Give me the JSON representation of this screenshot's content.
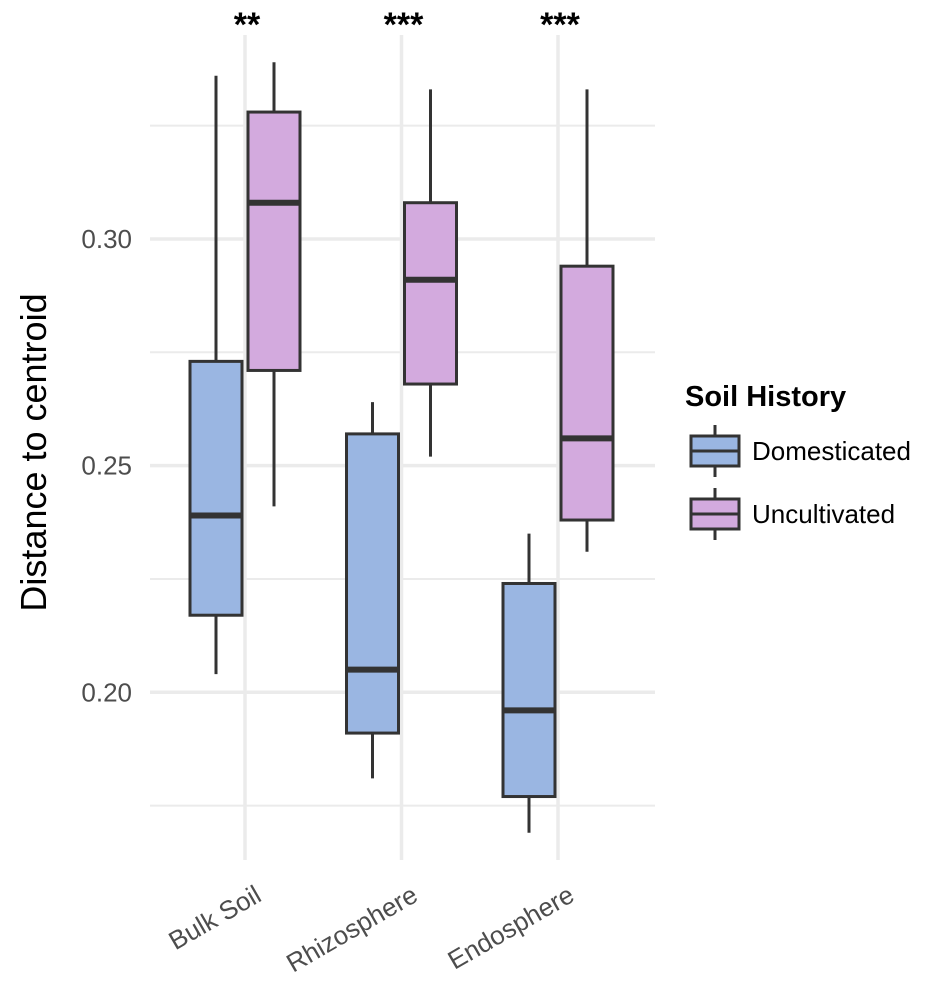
{
  "chart_data": {
    "type": "boxplot",
    "y_label": "Distance to centroid",
    "categories": [
      "Bulk Soil",
      "Rhizosphere",
      "Endosphere"
    ],
    "annotations": [
      "**",
      "***",
      "***"
    ],
    "legend_title": "Soil History",
    "legend_position": "right",
    "series": [
      {
        "name": "Domesticated",
        "color": "#9ab6e2",
        "values": [
          {
            "min": 0.204,
            "q1": 0.217,
            "median": 0.239,
            "q3": 0.273,
            "max": 0.336
          },
          {
            "min": 0.181,
            "q1": 0.191,
            "median": 0.205,
            "q3": 0.257,
            "max": 0.264
          },
          {
            "min": 0.169,
            "q1": 0.177,
            "median": 0.196,
            "q3": 0.224,
            "max": 0.235
          }
        ]
      },
      {
        "name": "Uncultivated",
        "color": "#d3aade",
        "values": [
          {
            "min": 0.241,
            "q1": 0.271,
            "median": 0.308,
            "q3": 0.328,
            "max": 0.339
          },
          {
            "min": 0.252,
            "q1": 0.268,
            "median": 0.291,
            "q3": 0.308,
            "max": 0.333
          },
          {
            "min": 0.231,
            "q1": 0.238,
            "median": 0.256,
            "q3": 0.294,
            "max": 0.333
          }
        ]
      }
    ],
    "ylim": [
      0.163,
      0.345
    ],
    "yticks": [
      {
        "value": 0.2,
        "label": "0.20"
      },
      {
        "value": 0.25,
        "label": "0.25"
      },
      {
        "value": 0.3,
        "label": "0.30"
      }
    ],
    "minor_yticks": [
      0.175,
      0.225,
      0.275,
      0.325
    ],
    "grid": true
  }
}
